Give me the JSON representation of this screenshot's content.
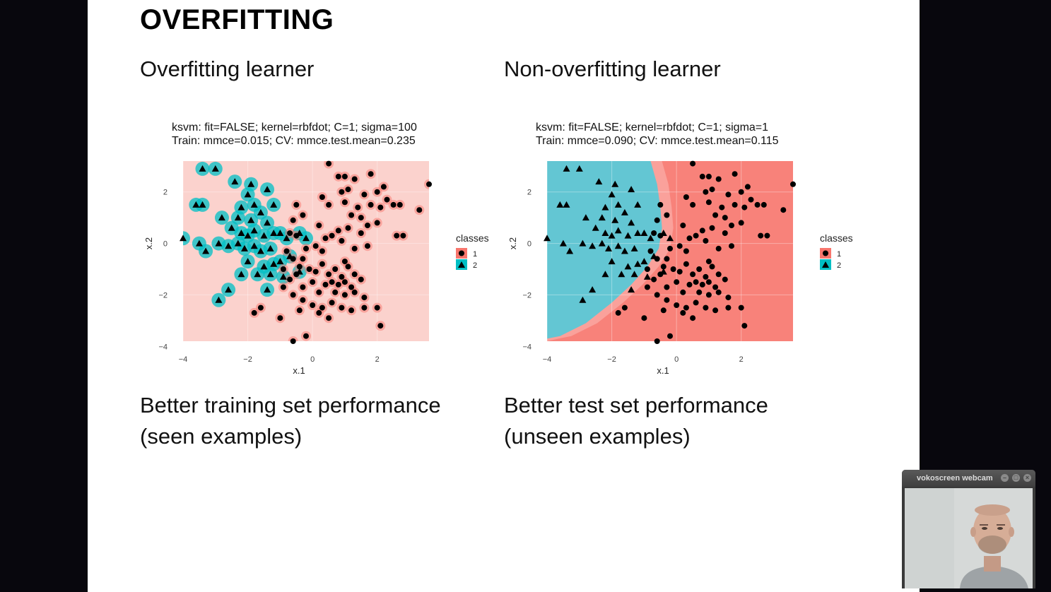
{
  "slide": {
    "title": "OVERFITTING",
    "left": {
      "heading": "Overfitting learner",
      "caption_line1": "Better training set performance",
      "caption_line2": "(seen examples)"
    },
    "right": {
      "heading": "Non-overfitting learner",
      "caption_line1": "Better test set performance",
      "caption_line2": "(unseen examples)"
    }
  },
  "webcam": {
    "title": "vokoscreen webcam"
  },
  "colors": {
    "class1": "#f8766d",
    "class2": "#00bfc4",
    "point": "#000000",
    "slide_bg": "#ffffff",
    "desktop_bg": "#08070d"
  },
  "chart_data": [
    {
      "type": "scatter",
      "title_line1": "ksvm: fit=FALSE; kernel=rbfdot; C=1; sigma=100",
      "title_line2": "Train: mmce=0.015; CV: mmce.test.mean=0.235",
      "xlabel": "x.1",
      "ylabel": "x.2",
      "xlim": [
        -4,
        3.6
      ],
      "ylim": [
        -3.8,
        3.2
      ],
      "xticks": [
        "-4",
        "-2",
        "0",
        "2"
      ],
      "yticks": [
        "-4",
        "-2",
        "0",
        "2"
      ],
      "legend_title": "classes",
      "legend": [
        "1",
        "2"
      ],
      "legend_placement": "right",
      "background": "mostly class 1 with class 2 halos around training points"
    },
    {
      "type": "scatter",
      "title_line1": "ksvm: fit=FALSE; kernel=rbfdot; C=1; sigma=1",
      "title_line2": "Train: mmce=0.090; CV: mmce.test.mean=0.115",
      "xlabel": "x.1",
      "ylabel": "x.2",
      "xlim": [
        -4,
        3.6
      ],
      "ylim": [
        -3.8,
        3.2
      ],
      "xticks": [
        "-4",
        "-2",
        "0",
        "2"
      ],
      "yticks": [
        "-4",
        "-2",
        "0",
        "2"
      ],
      "legend_title": "classes",
      "legend": [
        "1",
        "2"
      ],
      "legend_placement": "right",
      "background": "smooth boundary: class 2 region left, class 1 region right"
    }
  ],
  "points": {
    "class1": [
      [
        0.5,
        3.1
      ],
      [
        3.6,
        2.3
      ],
      [
        0.8,
        2.6
      ],
      [
        1.0,
        2.6
      ],
      [
        1.8,
        2.7
      ],
      [
        1.3,
        2.5
      ],
      [
        2.2,
        2.2
      ],
      [
        0.9,
        2.0
      ],
      [
        1.1,
        2.1
      ],
      [
        1.6,
        1.9
      ],
      [
        2.0,
        2.0
      ],
      [
        2.3,
        1.7
      ],
      [
        2.5,
        1.5
      ],
      [
        2.7,
        1.5
      ],
      [
        3.3,
        1.3
      ],
      [
        0.3,
        1.8
      ],
      [
        0.5,
        1.5
      ],
      [
        1.0,
        1.6
      ],
      [
        1.4,
        1.4
      ],
      [
        1.8,
        1.5
      ],
      [
        2.1,
        1.4
      ],
      [
        1.2,
        1.1
      ],
      [
        1.5,
        1.0
      ],
      [
        1.7,
        0.7
      ],
      [
        2.0,
        0.8
      ],
      [
        2.6,
        0.3
      ],
      [
        2.8,
        0.3
      ],
      [
        -0.5,
        1.5
      ],
      [
        -0.3,
        1.1
      ],
      [
        -0.6,
        0.9
      ],
      [
        0.2,
        0.7
      ],
      [
        0.8,
        0.5
      ],
      [
        1.1,
        0.6
      ],
      [
        1.5,
        0.4
      ],
      [
        0.4,
        0.2
      ],
      [
        0.6,
        0.3
      ],
      [
        0.9,
        0.1
      ],
      [
        -0.7,
        0.4
      ],
      [
        -0.5,
        0.3
      ],
      [
        -0.2,
        -0.2
      ],
      [
        0.1,
        -0.1
      ],
      [
        0.3,
        -0.3
      ],
      [
        1.3,
        -0.2
      ],
      [
        1.7,
        -0.1
      ],
      [
        -0.8,
        -0.3
      ],
      [
        -0.6,
        -0.6
      ],
      [
        -0.4,
        -0.9
      ],
      [
        -0.1,
        -1.0
      ],
      [
        0.1,
        -1.1
      ],
      [
        0.3,
        -0.8
      ],
      [
        0.5,
        -1.2
      ],
      [
        0.7,
        -1.0
      ],
      [
        0.9,
        -1.3
      ],
      [
        1.1,
        -0.9
      ],
      [
        1.3,
        -1.2
      ],
      [
        1.5,
        -1.4
      ],
      [
        0.6,
        -1.5
      ],
      [
        0.8,
        -1.6
      ],
      [
        1.0,
        -1.5
      ],
      [
        1.2,
        -1.7
      ],
      [
        -0.9,
        -1.0
      ],
      [
        -0.7,
        -1.4
      ],
      [
        -0.5,
        -1.2
      ],
      [
        -0.3,
        -1.7
      ],
      [
        0.0,
        -1.5
      ],
      [
        0.2,
        -1.9
      ],
      [
        0.4,
        -1.6
      ],
      [
        0.7,
        -1.9
      ],
      [
        1.0,
        -2.0
      ],
      [
        1.3,
        -1.9
      ],
      [
        1.6,
        -2.1
      ],
      [
        -0.9,
        -1.7
      ],
      [
        -0.6,
        -2.0
      ],
      [
        -0.3,
        -2.2
      ],
      [
        0.0,
        -2.4
      ],
      [
        0.3,
        -2.5
      ],
      [
        0.6,
        -2.3
      ],
      [
        0.9,
        -2.5
      ],
      [
        1.2,
        -2.6
      ],
      [
        1.6,
        -2.5
      ],
      [
        2.0,
        -2.5
      ],
      [
        -1.6,
        -2.5
      ],
      [
        -1.0,
        -2.9
      ],
      [
        -0.4,
        -2.6
      ],
      [
        0.5,
        -2.9
      ],
      [
        2.1,
        -3.2
      ],
      [
        -0.2,
        -3.6
      ],
      [
        -0.6,
        -3.8
      ],
      [
        -1.8,
        -2.7
      ],
      [
        0.2,
        -2.7
      ],
      [
        -0.3,
        -0.6
      ],
      [
        1.0,
        -0.7
      ]
    ],
    "class2": [
      [
        -3.4,
        2.9
      ],
      [
        -3.0,
        2.9
      ],
      [
        -2.4,
        2.4
      ],
      [
        -1.9,
        2.3
      ],
      [
        -1.4,
        2.1
      ],
      [
        -2.0,
        1.9
      ],
      [
        -3.6,
        1.5
      ],
      [
        -3.4,
        1.5
      ],
      [
        -2.2,
        1.4
      ],
      [
        -1.8,
        1.5
      ],
      [
        -1.2,
        1.5
      ],
      [
        -2.8,
        1.0
      ],
      [
        -2.3,
        1.0
      ],
      [
        -1.9,
        0.9
      ],
      [
        -1.6,
        1.2
      ],
      [
        -1.4,
        0.8
      ],
      [
        -2.5,
        0.6
      ],
      [
        -2.2,
        0.4
      ],
      [
        -2.0,
        0.3
      ],
      [
        -1.8,
        0.5
      ],
      [
        -1.5,
        0.3
      ],
      [
        -1.2,
        0.4
      ],
      [
        -4.0,
        0.2
      ],
      [
        -3.5,
        0.0
      ],
      [
        -2.9,
        0.0
      ],
      [
        -2.6,
        -0.1
      ],
      [
        -2.3,
        0.0
      ],
      [
        -2.1,
        -0.2
      ],
      [
        -1.8,
        -0.1
      ],
      [
        -1.6,
        -0.3
      ],
      [
        -1.3,
        -0.2
      ],
      [
        -1.0,
        0.4
      ],
      [
        -0.8,
        0.2
      ],
      [
        -0.4,
        0.4
      ],
      [
        -0.2,
        0.2
      ],
      [
        -3.3,
        -0.3
      ],
      [
        -2.0,
        -0.7
      ],
      [
        -1.5,
        -0.9
      ],
      [
        -1.2,
        -0.8
      ],
      [
        -0.7,
        -0.5
      ],
      [
        -2.2,
        -1.2
      ],
      [
        -1.7,
        -1.2
      ],
      [
        -1.3,
        -1.2
      ],
      [
        -0.9,
        -1.3
      ],
      [
        -0.4,
        -1.1
      ],
      [
        -2.6,
        -1.8
      ],
      [
        -1.4,
        -1.8
      ],
      [
        -2.9,
        -2.2
      ],
      [
        -1.0,
        -0.7
      ]
    ]
  }
}
